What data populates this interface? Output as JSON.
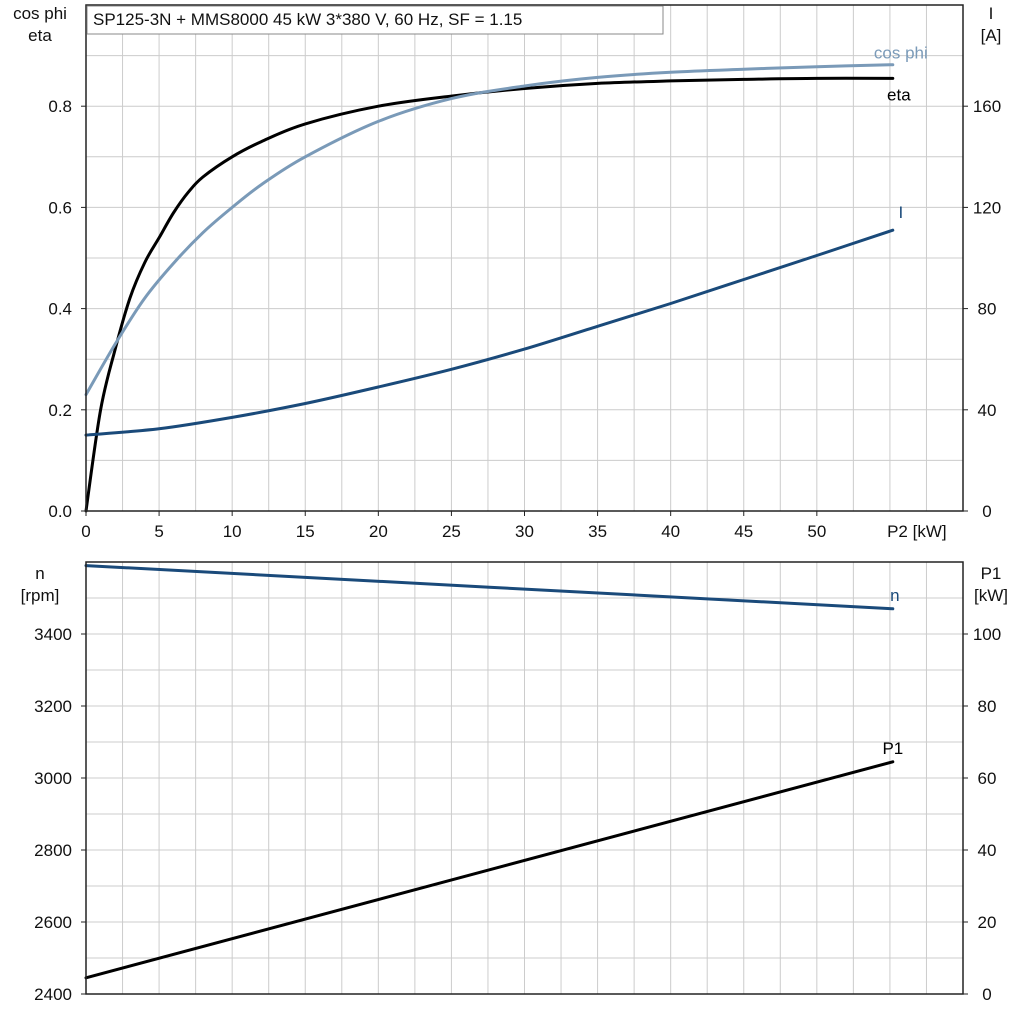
{
  "title": "SP125-3N + MMS8000   45 kW   3*380 V, 60 Hz, SF = 1.15",
  "chart_data": [
    {
      "type": "line",
      "panel": "top",
      "x_label": "P2 [kW]",
      "x_ticks": [
        "0",
        "5",
        "10",
        "15",
        "20",
        "25",
        "30",
        "35",
        "40",
        "45",
        "50"
      ],
      "xlim": [
        0,
        60
      ],
      "left_axis": {
        "label_lines": [
          "cos phi",
          "eta"
        ],
        "ylim": [
          0,
          1.0
        ],
        "ticks": [
          "0.0",
          "0.2",
          "0.4",
          "0.6",
          "0.8"
        ]
      },
      "right_axis": {
        "label_lines": [
          "I",
          "[A]"
        ],
        "ylim": [
          0,
          200
        ],
        "ticks": [
          "0",
          "40",
          "80",
          "120",
          "160"
        ]
      },
      "series": [
        {
          "name": "eta",
          "axis": "left",
          "color": "#000000",
          "x": [
            0,
            1,
            2,
            3,
            4,
            5,
            6,
            7,
            8,
            10,
            12,
            15,
            20,
            25,
            30,
            35,
            40,
            45,
            50,
            55.2
          ],
          "y": [
            0,
            0.2,
            0.32,
            0.42,
            0.49,
            0.54,
            0.59,
            0.63,
            0.66,
            0.7,
            0.73,
            0.765,
            0.8,
            0.82,
            0.835,
            0.845,
            0.85,
            0.853,
            0.855,
            0.855
          ]
        },
        {
          "name": "cos phi",
          "axis": "left",
          "color": "#7a9ab8",
          "x": [
            0,
            2,
            4,
            6,
            8,
            10,
            12,
            15,
            20,
            25,
            30,
            35,
            40,
            45,
            50,
            55.2
          ],
          "y": [
            0.23,
            0.33,
            0.42,
            0.49,
            0.55,
            0.6,
            0.645,
            0.7,
            0.77,
            0.815,
            0.84,
            0.857,
            0.867,
            0.873,
            0.878,
            0.882
          ]
        },
        {
          "name": "I",
          "axis": "right",
          "color": "#1a4a7a",
          "x": [
            0,
            5,
            10,
            15,
            20,
            25,
            30,
            35,
            40,
            45,
            50,
            55.2
          ],
          "y": [
            30,
            32.5,
            37,
            42.5,
            49,
            56,
            64,
            73,
            82,
            91.5,
            101,
            111
          ]
        }
      ]
    },
    {
      "type": "line",
      "panel": "bottom",
      "xlim": [
        0,
        60
      ],
      "left_axis": {
        "label_lines": [
          "n",
          "[rpm]"
        ],
        "ylim": [
          2400,
          3600
        ],
        "ticks": [
          "2400",
          "2600",
          "2800",
          "3000",
          "3200",
          "3400"
        ]
      },
      "right_axis": {
        "label_lines": [
          "P1",
          "[kW]"
        ],
        "ylim": [
          0,
          120
        ],
        "ticks": [
          "0",
          "20",
          "40",
          "60",
          "80",
          "100"
        ]
      },
      "series": [
        {
          "name": "n",
          "axis": "left",
          "color": "#1a4a7a",
          "x": [
            0,
            55.2
          ],
          "y": [
            3590,
            3470
          ]
        },
        {
          "name": "P1",
          "axis": "right",
          "color": "#000000",
          "x": [
            0,
            55.2
          ],
          "y": [
            4.5,
            64.5
          ]
        }
      ]
    }
  ]
}
